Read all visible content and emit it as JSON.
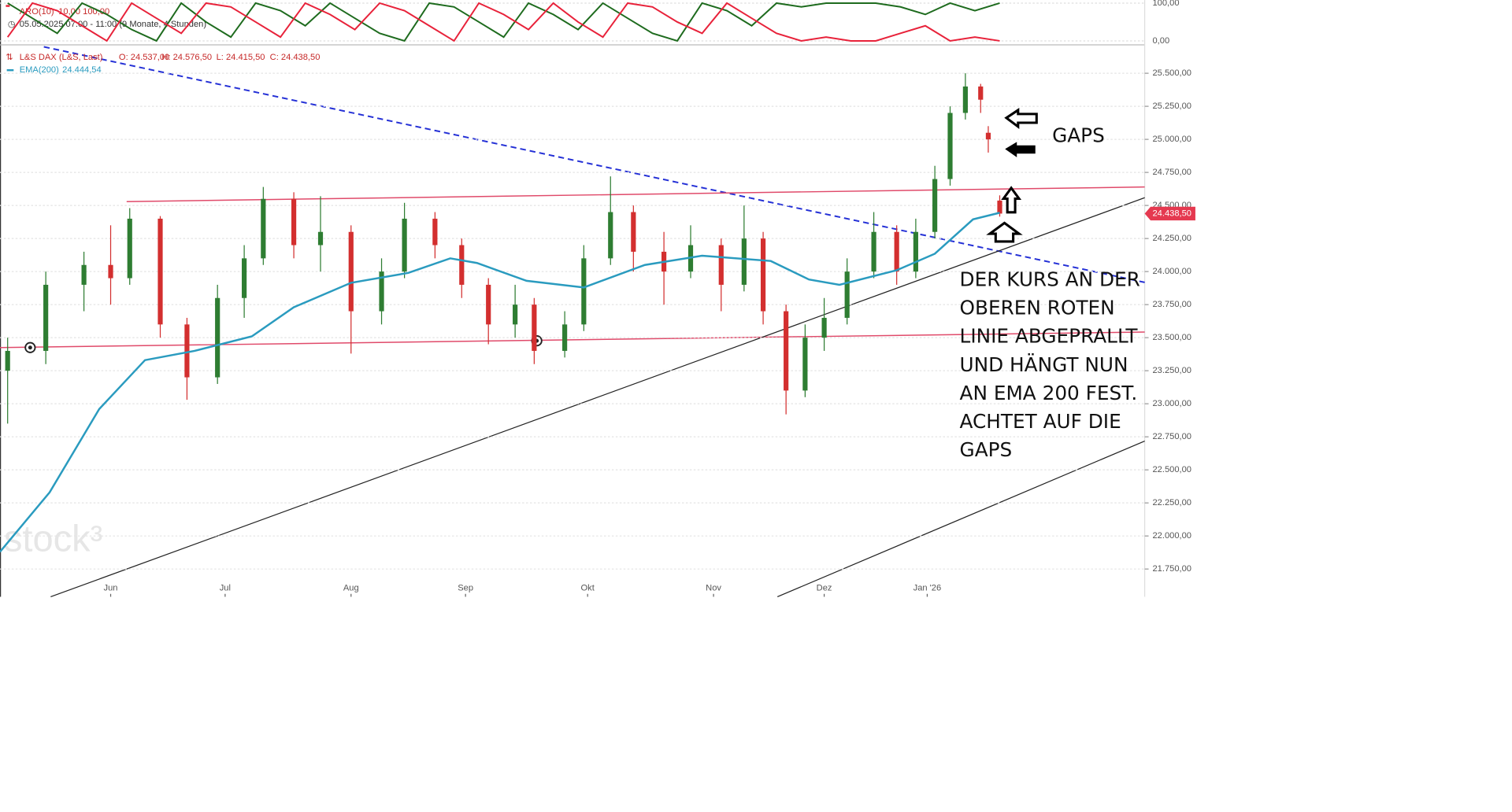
{
  "chart_data": [
    {
      "type": "line",
      "title": "ARO(10)",
      "subtitle": "10,00  100,00",
      "xlim": [
        -2,
        298
      ],
      "ylim": [
        -8,
        108
      ],
      "yticks": [
        {
          "value": 100,
          "label": "100,00"
        },
        {
          "value": 0,
          "label": "0,00"
        }
      ],
      "x": [
        0,
        6.5,
        13,
        19.5,
        26,
        32.5,
        39,
        45.5,
        52,
        58.5,
        65,
        71.5,
        78,
        84.5,
        91,
        97.5,
        104,
        110.5,
        117,
        123.5,
        130,
        136.5,
        143,
        149.5,
        156,
        162.5,
        169,
        175.5,
        182,
        188.5,
        195,
        201.5,
        208,
        214.5,
        221,
        227.5,
        234,
        240.5,
        247,
        253.5,
        260
      ],
      "series": [
        {
          "color": "#1e6b1e",
          "values": [
            100,
            60,
            20,
            100,
            70,
            30,
            0,
            100,
            50,
            10,
            100,
            80,
            40,
            100,
            60,
            20,
            0,
            100,
            90,
            50,
            10,
            100,
            70,
            30,
            100,
            60,
            20,
            0,
            100,
            80,
            40,
            100,
            90,
            100,
            100,
            100,
            90,
            70,
            100,
            80,
            100
          ]
        },
        {
          "color": "#e8223a",
          "values": [
            10,
            100,
            80,
            40,
            0,
            100,
            60,
            20,
            100,
            90,
            50,
            10,
            100,
            70,
            30,
            100,
            80,
            40,
            0,
            100,
            70,
            30,
            100,
            50,
            10,
            100,
            90,
            50,
            20,
            100,
            60,
            20,
            0,
            10,
            0,
            0,
            20,
            40,
            0,
            10,
            0
          ]
        }
      ]
    },
    {
      "type": "candlestick",
      "date_range": "05.05.2025 07:00 - 11:00  (9 Monate, 4 Stunden)",
      "legend": {
        "name": "L&S DAX (L&S, Last)",
        "open": "O: 24.537,00",
        "high": "H: 24.576,50",
        "low": "L: 24.415,50",
        "close": "C: 24.438,50"
      },
      "xlim": [
        -2,
        298
      ],
      "ylim": [
        21540,
        25700
      ],
      "grid": true,
      "xticks": [
        {
          "value": 27,
          "label": "Jun"
        },
        {
          "value": 57,
          "label": "Jul"
        },
        {
          "value": 90,
          "label": "Aug"
        },
        {
          "value": 120,
          "label": "Sep"
        },
        {
          "value": 152,
          "label": "Okt"
        },
        {
          "value": 185,
          "label": "Nov"
        },
        {
          "value": 214,
          "label": "Dez"
        },
        {
          "value": 241,
          "label": "Jan '26"
        }
      ],
      "yticks": [
        {
          "value": 21750,
          "label": "21.750,00"
        },
        {
          "value": 22000,
          "label": "22.000,00"
        },
        {
          "value": 22250,
          "label": "22.250,00"
        },
        {
          "value": 22500,
          "label": "22.500,00"
        },
        {
          "value": 22750,
          "label": "22.750,00"
        },
        {
          "value": 23000,
          "label": "23.000,00"
        },
        {
          "value": 23250,
          "label": "23.250,00"
        },
        {
          "value": 23500,
          "label": "23.500,00"
        },
        {
          "value": 23750,
          "label": "23.750,00"
        },
        {
          "value": 24000,
          "label": "24.000,00"
        },
        {
          "value": 24250,
          "label": "24.250,00"
        },
        {
          "value": 24500,
          "label": "24.500,00"
        },
        {
          "value": 24750,
          "label": "24.750,00"
        },
        {
          "value": 25000,
          "label": "25.000,00"
        },
        {
          "value": 25250,
          "label": "25.250,00"
        },
        {
          "value": 25500,
          "label": "25.500,00"
        }
      ],
      "x": [
        0,
        10,
        20,
        27,
        32,
        40,
        47,
        55,
        62,
        67,
        75,
        82,
        90,
        98,
        104,
        112,
        119,
        126,
        133,
        138,
        146,
        151,
        158,
        164,
        172,
        179,
        187,
        193,
        198,
        204,
        209,
        214,
        220,
        227,
        233,
        238,
        243,
        247,
        251,
        255,
        257,
        260
      ],
      "open": [
        23250,
        23400,
        23900,
        24050,
        23950,
        24400,
        23600,
        23200,
        23800,
        24100,
        24550,
        24200,
        24300,
        23700,
        24000,
        24400,
        24200,
        23900,
        23600,
        23750,
        23400,
        23600,
        24100,
        24450,
        24150,
        24000,
        24200,
        23900,
        24250,
        23700,
        23100,
        23500,
        23650,
        24000,
        24300,
        24000,
        24300,
        24700,
        25200,
        25400,
        25050,
        24537
      ],
      "high": [
        23500,
        24000,
        24150,
        24350,
        24480,
        24420,
        23650,
        23900,
        24200,
        24640,
        24600,
        24570,
        24350,
        24100,
        24520,
        24450,
        24250,
        23950,
        23900,
        23800,
        23700,
        24200,
        24720,
        24500,
        24300,
        24350,
        24250,
        24500,
        24300,
        23750,
        23600,
        23800,
        24100,
        24450,
        24350,
        24400,
        24800,
        25250,
        25500,
        25420,
        25100,
        24576.5
      ],
      "low": [
        22850,
        23300,
        23700,
        23750,
        23900,
        23500,
        23030,
        23150,
        23650,
        24050,
        24100,
        24000,
        23380,
        23600,
        23950,
        24100,
        23800,
        23450,
        23500,
        23300,
        23350,
        23550,
        24050,
        24000,
        23750,
        23950,
        23700,
        23850,
        23600,
        22920,
        23050,
        23400,
        23600,
        23950,
        23900,
        23950,
        24250,
        24650,
        25150,
        25200,
        24900,
        24415.5
      ],
      "close": [
        23400,
        23900,
        24050,
        23950,
        24400,
        23600,
        23200,
        23800,
        24100,
        24550,
        24200,
        24300,
        23700,
        24000,
        24400,
        24200,
        23900,
        23600,
        23750,
        23400,
        23600,
        24100,
        24450,
        24150,
        24000,
        24200,
        23900,
        24250,
        23700,
        23100,
        23500,
        23650,
        24000,
        24300,
        24000,
        24300,
        24700,
        25200,
        25400,
        25300,
        25000,
        24438.5
      ],
      "up_color": "#2e7d32",
      "down_color": "#d32f2f",
      "last_value": 24438.5,
      "last_value_label": "24.438,50",
      "ema": {
        "name": "EMA(200)",
        "label": "24.444,54",
        "color": "#2a9bbf",
        "x": [
          -2,
          11,
          24,
          36,
          49,
          64,
          75,
          90,
          105,
          116,
          123,
          136,
          151,
          167,
          182,
          200,
          210,
          218,
          233,
          243,
          253,
          260
        ],
        "values": [
          21880,
          22330,
          22960,
          23330,
          23400,
          23510,
          23730,
          23915,
          23990,
          24100,
          24065,
          23930,
          23880,
          24050,
          24120,
          24080,
          23940,
          23900,
          24010,
          24135,
          24395,
          24445
        ]
      },
      "watermark": "stock³",
      "gaps_label": "GAPS",
      "annotation": [
        "DER KURS AN DER",
        "OBEREN ROTEN",
        "LINIE ABGEPRALLT",
        "UND HÄNGT NUN",
        "AN EMA 200 FEST.",
        "ACHTET AUF DIE",
        "GAPS"
      ]
    }
  ]
}
